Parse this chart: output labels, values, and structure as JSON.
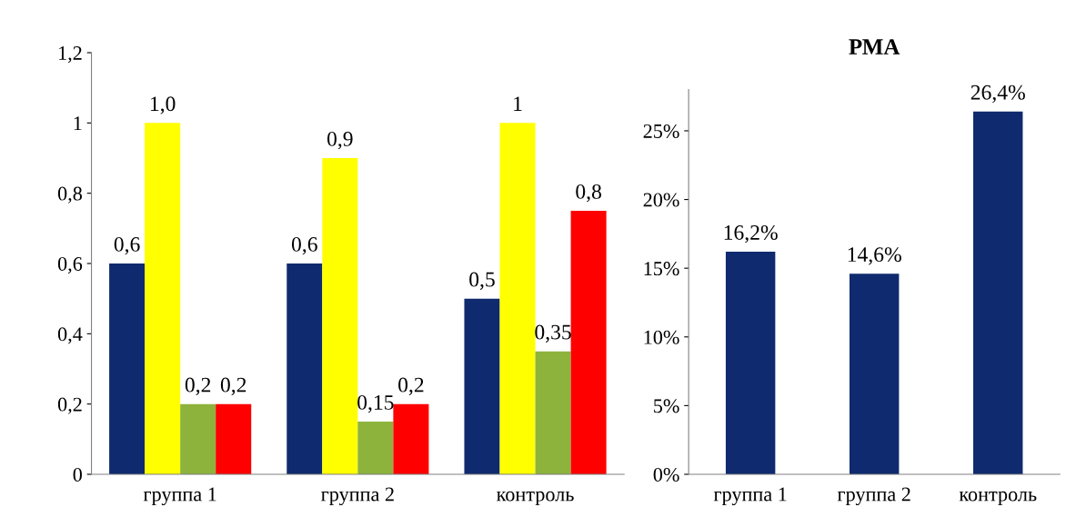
{
  "chart_data": [
    {
      "type": "bar",
      "categories": [
        "группа 1",
        "группа 2",
        "контроль"
      ],
      "series": [
        {
          "color": "#0f2a6e",
          "values": [
            0.6,
            0.6,
            0.5
          ],
          "value_labels": [
            "0,6",
            "0,6",
            "0,5"
          ]
        },
        {
          "color": "#ffff00",
          "values": [
            1.0,
            0.9,
            1.0
          ],
          "value_labels": [
            "1,0",
            "0,9",
            "1"
          ]
        },
        {
          "color": "#8db33c",
          "values": [
            0.2,
            0.15,
            0.35
          ],
          "value_labels": [
            "0,2",
            "0,15",
            "0,35"
          ]
        },
        {
          "color": "#ff0000",
          "values": [
            0.2,
            0.2,
            0.75
          ],
          "value_labels": [
            "0,2",
            "0,2",
            "0,8"
          ]
        }
      ],
      "ylim": [
        0,
        1.2
      ],
      "yticks": [
        0,
        {
          "value": 0.2,
          "label": "0,2"
        },
        {
          "value": 0.4,
          "label": "0,4"
        },
        {
          "value": 0.6,
          "label": "0,6"
        },
        {
          "value": 0.8,
          "label": "0,8"
        },
        1,
        {
          "value": 1.2,
          "label": "1,2"
        }
      ],
      "grid": false
    },
    {
      "type": "bar",
      "title": "РМА",
      "categories": [
        "группа 1",
        "группа 2",
        "контроль"
      ],
      "series": [
        {
          "color": "#0f2a6e",
          "values": [
            16.2,
            14.6,
            26.4
          ],
          "value_labels": [
            "16,2%",
            "14,6%",
            "26,4%"
          ]
        }
      ],
      "ylim": [
        0,
        28
      ],
      "yticks": [
        {
          "value": 0,
          "label": "0%"
        },
        {
          "value": 5,
          "label": "5%"
        },
        {
          "value": 10,
          "label": "10%"
        },
        {
          "value": 15,
          "label": "15%"
        },
        {
          "value": 20,
          "label": "20%"
        },
        {
          "value": 25,
          "label": "25%"
        }
      ],
      "grid": false
    }
  ]
}
